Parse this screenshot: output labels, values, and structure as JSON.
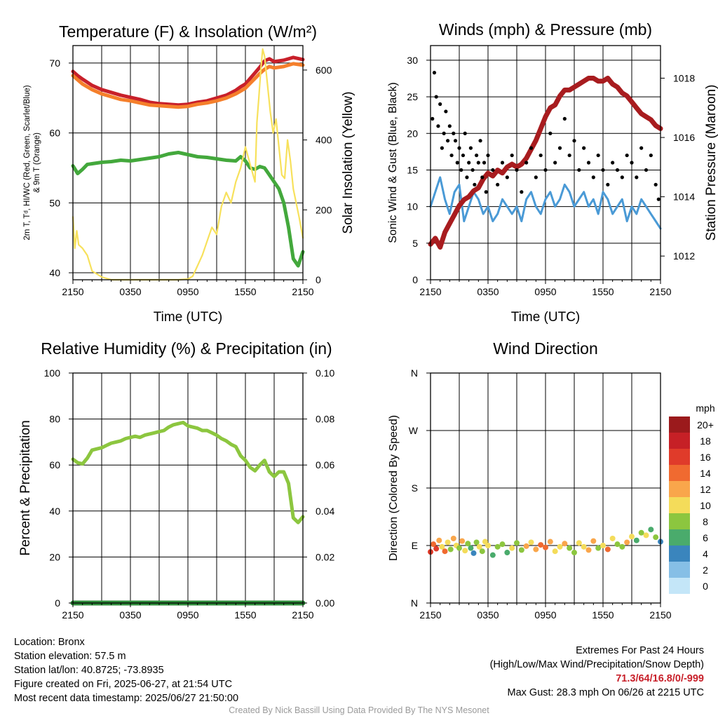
{
  "panels": {
    "temperature": {
      "title": "Temperature (F) & Insolation (W/m²)",
      "ylabel_left_lines": [
        "2m T, Tᵈ, HI/WC (Red, Green, Scarlet/Blue)",
        "& 9m T (Orange)"
      ],
      "ylabel_right": "Solar Insolation (Yellow)",
      "xlabel": "Time (UTC)"
    },
    "winds": {
      "title": "Winds (mph) & Pressure (mb)",
      "ylabel_left": "Sonic Wind & Gust (Blue, Black)",
      "ylabel_right": "Station Pressure (Maroon)",
      "xlabel": "Time (UTC)"
    },
    "humidity": {
      "title": "Relative Humidity (%) & Precipitation (in)",
      "ylabel_left": "Percent & Precipitation"
    },
    "direction": {
      "title": "Wind Direction",
      "ylabel_left": "Direction (Colored By Speed)"
    }
  },
  "colorbar": {
    "unit": "mph",
    "labels": [
      "20+",
      "18",
      "16",
      "14",
      "12",
      "10",
      "8",
      "6",
      "4",
      "2",
      "0"
    ],
    "colors": [
      "#9b1a1c",
      "#c62026",
      "#e03b2a",
      "#f06a30",
      "#f9a64b",
      "#f4dc5a",
      "#8cc63f",
      "#4aab6c",
      "#3a85bd",
      "#86bfe6",
      "#c4e6f8"
    ]
  },
  "info": {
    "location": "Location: Bronx",
    "elevation": "Station elevation: 57.5 m",
    "latlon": "Station lat/lon: 40.8725; -73.8935",
    "created": "Figure created on Fri, 2025-06-27, at 21:54 UTC",
    "recent": "Most recent data timestamp: 2025/06/27 21:50:00",
    "extremes_title": "Extremes For Past 24 Hours",
    "extremes_legend": "(High/Low/Max Wind/Precipitation/Snow Depth)",
    "extremes_values": "71.3/64/16.8/0/-999",
    "max_gust": "Max Gust: 28.3 mph On 06/26 at 2215 UTC",
    "credit": "Created By Nick Bassill Using Data Provided By The NYS Mesonet"
  },
  "chart_data": [
    {
      "type": "line",
      "name": "temperature",
      "x_ticks": [
        "2150",
        "0350",
        "0950",
        "1550",
        "2150"
      ],
      "x_hours": [
        0,
        6,
        12,
        18,
        24
      ],
      "ylim_left": [
        39,
        72.5
      ],
      "ylim_right": [
        0,
        670
      ],
      "yticks_left": [
        40,
        50,
        60,
        70
      ],
      "yticks_right": [
        0,
        200,
        400,
        600
      ],
      "series": [
        {
          "color": "#c8202a",
          "axis": "left",
          "x": [
            0,
            0.5,
            1,
            2,
            3,
            4,
            5,
            6,
            7,
            8,
            9,
            10,
            11,
            12,
            13,
            14,
            15,
            16,
            17,
            17.5,
            18,
            18.5,
            19,
            19.5,
            20,
            20.5,
            21,
            22,
            23,
            24
          ],
          "y": [
            68.8,
            68.2,
            67.7,
            66.8,
            66.2,
            65.8,
            65.4,
            65.1,
            64.8,
            64.4,
            64.2,
            64.1,
            64.0,
            64.1,
            64.4,
            64.6,
            65.0,
            65.4,
            66.1,
            66.6,
            67.0,
            67.8,
            68.6,
            69.4,
            70.3,
            70.6,
            70.2,
            70.4,
            70.8,
            70.5
          ]
        },
        {
          "color": "#f57f2b",
          "axis": "left",
          "x": [
            0,
            0.5,
            1,
            2,
            3,
            4,
            5,
            6,
            7,
            8,
            9,
            10,
            11,
            12,
            13,
            14,
            15,
            16,
            17,
            17.5,
            18,
            18.5,
            19,
            19.5,
            20,
            20.5,
            21,
            22,
            23,
            24
          ],
          "y": [
            68.2,
            67.6,
            67.0,
            66.2,
            65.6,
            65.2,
            64.8,
            64.6,
            64.3,
            64.0,
            63.9,
            63.8,
            63.7,
            63.8,
            64.1,
            64.3,
            64.6,
            65.0,
            65.6,
            66.0,
            66.4,
            67.1,
            67.8,
            68.5,
            69.1,
            69.5,
            69.3,
            69.5,
            69.9,
            69.7
          ]
        },
        {
          "color": "#43a83c",
          "axis": "left",
          "x": [
            0,
            0.5,
            1,
            1.5,
            2,
            3,
            4,
            5,
            6,
            7,
            8,
            9,
            10,
            11,
            12,
            13,
            14,
            15,
            16,
            17,
            17.5,
            18,
            18.5,
            19,
            19.5,
            20,
            20.5,
            21,
            21.5,
            22,
            22.5,
            23,
            23.5,
            24
          ],
          "y": [
            55.3,
            54.2,
            54.8,
            55.5,
            55.6,
            55.8,
            55.9,
            56.1,
            56.0,
            56.2,
            56.4,
            56.6,
            57.0,
            57.2,
            56.9,
            56.6,
            56.5,
            56.3,
            56.1,
            56.0,
            56.6,
            56.0,
            55.0,
            54.8,
            55.2,
            55.0,
            54.0,
            53.0,
            52.0,
            50.0,
            46.5,
            42.0,
            41.0,
            43.0
          ]
        },
        {
          "color": "#f7e15c",
          "axis": "right",
          "x": [
            0,
            0.2,
            0.4,
            0.6,
            1.0,
            1.5,
            2,
            3,
            4,
            5,
            6,
            7,
            8,
            9,
            10,
            11,
            12,
            12.5,
            13,
            13.5,
            14,
            14.5,
            15,
            15.5,
            16,
            16.5,
            17,
            17.5,
            18,
            18.5,
            19,
            19.2,
            19.4,
            19.6,
            19.8,
            20,
            20.3,
            20.6,
            20.9,
            21.2,
            21.5,
            21.8,
            22.1,
            22.4,
            22.7,
            23,
            23.3,
            23.6,
            24
          ],
          "y": [
            180,
            90,
            140,
            100,
            90,
            70,
            25,
            8,
            0,
            0,
            0,
            0,
            0,
            0,
            0,
            0,
            2,
            10,
            40,
            70,
            110,
            150,
            130,
            210,
            250,
            220,
            280,
            320,
            380,
            330,
            280,
            450,
            520,
            600,
            660,
            640,
            560,
            480,
            420,
            460,
            380,
            300,
            290,
            400,
            340,
            260,
            220,
            180,
            120
          ]
        }
      ]
    },
    {
      "type": "line",
      "name": "winds",
      "x_ticks": [
        "2150",
        "0350",
        "0950",
        "1550",
        "2150"
      ],
      "x_hours": [
        0,
        6,
        12,
        18,
        24
      ],
      "ylim_left": [
        0,
        32
      ],
      "ylim_right": [
        1011.2,
        1019.1
      ],
      "yticks_left": [
        0,
        5,
        10,
        15,
        20,
        25,
        30
      ],
      "yticks_right": [
        1012,
        1014,
        1016,
        1018
      ],
      "series": [
        {
          "color": "#4a9ad6",
          "axis": "left",
          "x": [
            0,
            0.5,
            1,
            1.5,
            2,
            2.5,
            3,
            3.5,
            4,
            4.5,
            5,
            5.5,
            6,
            6.5,
            7,
            7.5,
            8,
            8.5,
            9,
            9.5,
            10,
            10.5,
            11,
            11.5,
            12,
            12.5,
            13,
            13.5,
            14,
            14.5,
            15,
            15.5,
            16,
            16.5,
            17,
            17.5,
            18,
            18.5,
            19,
            19.5,
            20,
            20.5,
            21,
            21.5,
            22,
            22.5,
            23,
            23.5,
            24
          ],
          "y": [
            10,
            12,
            14,
            11,
            9,
            12,
            13,
            8,
            10,
            12,
            11,
            9,
            10,
            8,
            9,
            11,
            10,
            9,
            10,
            8,
            11,
            12,
            10,
            9,
            11,
            12,
            10,
            11,
            13,
            12,
            10,
            11,
            12,
            10,
            11,
            9,
            12,
            11,
            9,
            10,
            11,
            8,
            10,
            9,
            11,
            10,
            9,
            8,
            7
          ]
        },
        {
          "color": "#a81c1f",
          "axis": "right",
          "x": [
            0,
            0.5,
            1,
            1.5,
            2,
            2.5,
            3,
            3.5,
            4,
            4.5,
            5,
            5.5,
            6,
            6.5,
            7,
            7.5,
            8,
            8.5,
            9,
            9.5,
            10,
            10.5,
            11,
            11.5,
            12,
            12.5,
            13,
            13.5,
            14,
            14.5,
            15,
            15.5,
            16,
            16.5,
            17,
            17.5,
            18,
            18.5,
            19,
            19.5,
            20,
            20.5,
            21,
            21.5,
            22,
            22.5,
            23,
            23.5,
            24
          ],
          "y": [
            1012.4,
            1012.6,
            1012.3,
            1012.8,
            1013.1,
            1013.4,
            1013.7,
            1013.9,
            1014.0,
            1014.2,
            1014.3,
            1014.6,
            1014.8,
            1014.7,
            1014.9,
            1014.8,
            1015.0,
            1015.1,
            1015.0,
            1015.1,
            1015.3,
            1015.6,
            1015.9,
            1016.3,
            1016.7,
            1017.0,
            1017.1,
            1017.4,
            1017.6,
            1017.6,
            1017.7,
            1017.8,
            1017.9,
            1018.0,
            1018.0,
            1017.9,
            1017.9,
            1018.0,
            1017.8,
            1017.7,
            1017.5,
            1017.4,
            1017.2,
            1017.0,
            1016.8,
            1016.7,
            1016.6,
            1016.4,
            1016.3
          ]
        },
        {
          "color": "#000000",
          "axis": "left",
          "kind": "scatter",
          "x": [
            0.2,
            0.4,
            0.6,
            0.8,
            1.0,
            1.2,
            1.4,
            1.6,
            1.8,
            2.0,
            2.2,
            2.4,
            2.6,
            2.8,
            3.0,
            3.2,
            3.4,
            3.6,
            3.8,
            4.0,
            4.2,
            4.4,
            4.6,
            4.8,
            5.0,
            5.2,
            5.4,
            5.6,
            5.8,
            6.0,
            6.5,
            7.0,
            7.5,
            8.0,
            8.5,
            9.0,
            9.5,
            10.0,
            10.5,
            11.0,
            11.5,
            12.0,
            12.5,
            13.0,
            13.5,
            14.0,
            14.5,
            15.0,
            15.5,
            16.0,
            16.5,
            17.0,
            17.5,
            18.0,
            18.5,
            19.0,
            19.5,
            20.0,
            20.5,
            21.0,
            21.5,
            22.0,
            22.5,
            23.0,
            23.5,
            23.8
          ],
          "y": [
            22,
            28.3,
            25,
            21,
            24,
            18,
            20,
            23,
            19,
            21,
            17,
            20,
            19,
            16,
            18,
            15,
            17,
            20,
            14,
            16,
            18,
            15,
            13,
            17,
            16,
            19,
            14,
            16,
            12,
            17,
            15,
            13,
            16,
            14,
            17,
            15,
            12,
            16,
            18,
            14,
            17,
            15,
            20,
            16,
            18,
            22,
            17,
            19,
            15,
            18,
            16,
            14,
            17,
            15,
            13,
            16,
            15,
            14,
            17,
            16,
            14,
            18,
            15,
            17,
            13,
            11
          ]
        }
      ]
    },
    {
      "type": "line",
      "name": "humidity",
      "x_ticks": [
        "2150",
        "0350",
        "0950",
        "1550",
        "2150"
      ],
      "x_hours": [
        0,
        6,
        12,
        18,
        24
      ],
      "ylim_left": [
        0,
        100
      ],
      "ylim_right": [
        0,
        0.1
      ],
      "yticks_left": [
        0,
        20,
        40,
        60,
        80,
        100
      ],
      "yticks_right": [
        0.0,
        0.02,
        0.04,
        0.06,
        0.08,
        0.1
      ],
      "series": [
        {
          "color": "#8cc63f",
          "axis": "left",
          "x": [
            0,
            0.5,
            1,
            1.5,
            2,
            2.5,
            3,
            3.5,
            4,
            4.5,
            5,
            5.5,
            6,
            6.5,
            7,
            7.5,
            8,
            8.5,
            9,
            9.5,
            10,
            10.5,
            11,
            11.5,
            12,
            12.5,
            13,
            13.5,
            14,
            14.5,
            15,
            15.5,
            16,
            16.5,
            17,
            17.5,
            18,
            18.5,
            19,
            19.5,
            20,
            20.5,
            21,
            21.5,
            22,
            22.5,
            23,
            23.5,
            24
          ],
          "y": [
            62.5,
            61,
            60.5,
            63,
            66.5,
            67,
            67.5,
            68.5,
            69.5,
            70,
            70.5,
            71.5,
            72,
            72.5,
            72,
            73,
            73.5,
            74,
            74.5,
            75,
            76.5,
            77.5,
            78,
            78.5,
            77,
            76.5,
            76,
            75,
            75,
            74,
            73,
            71.5,
            70.5,
            69,
            68,
            64,
            62,
            59,
            57.5,
            60,
            62,
            57,
            55,
            57,
            57,
            52,
            37,
            35,
            37.5
          ]
        },
        {
          "color": "#2e8b3a",
          "axis": "right",
          "x": [
            0,
            24
          ],
          "y": [
            0,
            0
          ]
        }
      ]
    },
    {
      "type": "scatter",
      "name": "direction",
      "x_ticks": [
        "2150",
        "0350",
        "0950",
        "1550",
        "2150"
      ],
      "x_hours": [
        0,
        6,
        12,
        18,
        24
      ],
      "ylim": [
        0,
        360
      ],
      "yticks": [
        0,
        90,
        180,
        270,
        360
      ],
      "yticklabels": [
        "N",
        "E",
        "S",
        "W",
        "N"
      ],
      "points": {
        "x": [
          0.0,
          0.3,
          0.6,
          0.9,
          1.2,
          1.5,
          1.8,
          2.1,
          2.4,
          2.7,
          3.0,
          3.3,
          3.6,
          3.9,
          4.2,
          4.5,
          4.8,
          5.1,
          5.4,
          5.7,
          6.0,
          6.5,
          7.0,
          7.5,
          8.0,
          8.5,
          9.0,
          9.5,
          10.0,
          10.5,
          11.0,
          11.5,
          12.0,
          12.5,
          13.0,
          13.5,
          14.0,
          14.5,
          15.0,
          15.5,
          16.0,
          16.5,
          17.0,
          17.5,
          18.0,
          18.5,
          19.0,
          19.5,
          20.0,
          20.5,
          21.0,
          21.5,
          22.0,
          22.5,
          23.0,
          23.5,
          24.0
        ],
        "dir": [
          80,
          92,
          85,
          98,
          88,
          81,
          95,
          84,
          101,
          90,
          86,
          97,
          82,
          93,
          86,
          78,
          95,
          88,
          81,
          96,
          90,
          75,
          88,
          92,
          79,
          86,
          94,
          83,
          89,
          95,
          84,
          91,
          87,
          96,
          81,
          88,
          93,
          86,
          79,
          94,
          88,
          83,
          97,
          86,
          90,
          84,
          101,
          92,
          88,
          95,
          104,
          98,
          110,
          106,
          115,
          103,
          96
        ],
        "speed": [
          16,
          14,
          17,
          12,
          10,
          15,
          11,
          9,
          13,
          10,
          8,
          12,
          11,
          9,
          7,
          5,
          9,
          10,
          8,
          11,
          10,
          6,
          9,
          8,
          7,
          10,
          9,
          8,
          12,
          11,
          13,
          14,
          15,
          12,
          10,
          11,
          13,
          9,
          8,
          10,
          11,
          12,
          13,
          9,
          10,
          14,
          11,
          9,
          8,
          12,
          10,
          7,
          9,
          11,
          6,
          8,
          5
        ]
      }
    }
  ]
}
